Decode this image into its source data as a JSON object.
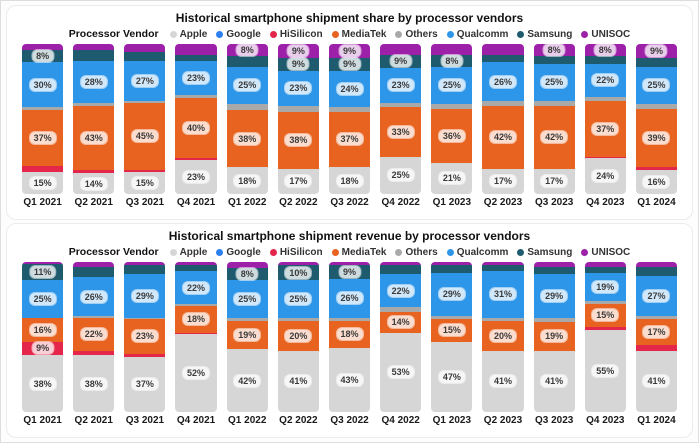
{
  "legend_title": "Processor Vendor",
  "vendors": [
    {
      "name": "Apple",
      "color": "#d6d6d6"
    },
    {
      "name": "Google",
      "color": "#2d7ff0"
    },
    {
      "name": "HiSilicon",
      "color": "#e4264a"
    },
    {
      "name": "MediaTek",
      "color": "#e8631f"
    },
    {
      "name": "Others",
      "color": "#a9a9a9"
    },
    {
      "name": "Qualcomm",
      "color": "#2e96e8"
    },
    {
      "name": "Samsung",
      "color": "#1f5b6e"
    },
    {
      "name": "UNISOC",
      "color": "#9d20a8"
    }
  ],
  "chart_data": [
    {
      "id": "share",
      "type": "bar",
      "stacked": true,
      "unit": "%",
      "ylim": [
        0,
        100
      ],
      "grid": false,
      "legend_position": "top",
      "label_threshold": 8,
      "title": "Historical smartphone shipment share by processor vendors",
      "categories": [
        "Q1 2021",
        "Q2 2021",
        "Q3 2021",
        "Q4 2021",
        "Q1 2022",
        "Q2 2022",
        "Q3 2022",
        "Q4 2022",
        "Q1 2023",
        "Q2 2023",
        "Q3 2023",
        "Q4 2023",
        "Q1 2024"
      ],
      "series": [
        {
          "name": "Apple",
          "values": [
            15,
            14,
            15,
            23,
            18,
            17,
            18,
            25,
            21,
            17,
            17,
            24,
            16
          ]
        },
        {
          "name": "Google",
          "values": [
            0,
            0,
            0,
            0,
            0,
            0,
            0,
            0,
            0,
            0,
            0,
            0,
            0
          ]
        },
        {
          "name": "HiSilicon",
          "values": [
            4,
            2,
            1,
            1,
            0,
            0,
            0,
            0,
            0,
            0,
            0,
            1,
            2
          ]
        },
        {
          "name": "MediaTek",
          "values": [
            37,
            43,
            45,
            40,
            38,
            38,
            37,
            33,
            36,
            42,
            42,
            37,
            39
          ]
        },
        {
          "name": "Others",
          "values": [
            2,
            2,
            1,
            2,
            4,
            4,
            3,
            3,
            3,
            3,
            3,
            3,
            3
          ]
        },
        {
          "name": "Qualcomm",
          "values": [
            30,
            28,
            27,
            23,
            25,
            23,
            24,
            23,
            25,
            26,
            25,
            22,
            25
          ]
        },
        {
          "name": "Samsung",
          "values": [
            8,
            7,
            6,
            4,
            7,
            9,
            9,
            9,
            8,
            5,
            5,
            5,
            6
          ]
        },
        {
          "name": "UNISOC",
          "values": [
            4,
            4,
            5,
            7,
            8,
            9,
            9,
            7,
            7,
            7,
            8,
            8,
            9
          ]
        }
      ]
    },
    {
      "id": "revenue",
      "type": "bar",
      "stacked": true,
      "unit": "%",
      "ylim": [
        0,
        100
      ],
      "grid": false,
      "legend_position": "top",
      "label_threshold": 8,
      "title": "Historical smartphone shipment revenue by processor vendors",
      "categories": [
        "Q1 2021",
        "Q2 2021",
        "Q3 2021",
        "Q4 2021",
        "Q1 2022",
        "Q2 2022",
        "Q3 2022",
        "Q4 2022",
        "Q1 2023",
        "Q2 2023",
        "Q3 2023",
        "Q4 2023",
        "Q1 2024"
      ],
      "series": [
        {
          "name": "Apple",
          "values": [
            38,
            38,
            37,
            52,
            42,
            41,
            43,
            53,
            47,
            41,
            41,
            55,
            41
          ]
        },
        {
          "name": "Google",
          "values": [
            0,
            0,
            0,
            0,
            0,
            0,
            0,
            0,
            0,
            0,
            0,
            0,
            0
          ]
        },
        {
          "name": "HiSilicon",
          "values": [
            9,
            3,
            2,
            1,
            0,
            0,
            0,
            0,
            0,
            0,
            0,
            2,
            4
          ]
        },
        {
          "name": "MediaTek",
          "values": [
            16,
            22,
            23,
            18,
            19,
            20,
            18,
            14,
            15,
            20,
            19,
            15,
            17
          ]
        },
        {
          "name": "Others",
          "values": [
            0,
            1,
            1,
            1,
            2,
            2,
            2,
            3,
            2,
            2,
            3,
            2,
            2
          ]
        },
        {
          "name": "Qualcomm",
          "values": [
            25,
            26,
            29,
            22,
            25,
            25,
            26,
            22,
            29,
            31,
            29,
            19,
            27
          ]
        },
        {
          "name": "Samsung",
          "values": [
            11,
            7,
            6,
            4,
            8,
            10,
            9,
            6,
            5,
            4,
            5,
            4,
            6
          ]
        },
        {
          "name": "UNISOC",
          "values": [
            1,
            3,
            2,
            2,
            4,
            2,
            2,
            2,
            2,
            2,
            3,
            3,
            3
          ]
        }
      ]
    }
  ]
}
